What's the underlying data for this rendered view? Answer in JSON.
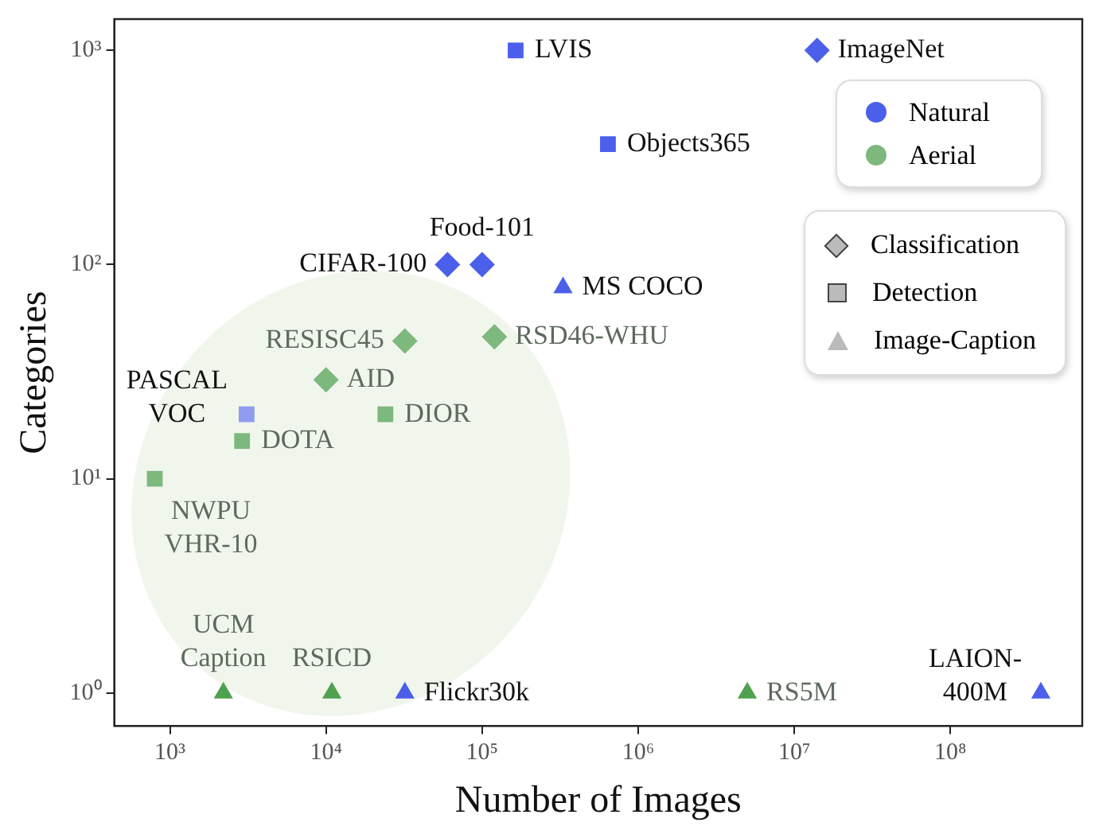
{
  "chart_data": {
    "type": "scatter",
    "xlabel": "Number of Images",
    "ylabel": "Categories",
    "log": "xy",
    "grid": false,
    "xlim": [
      440,
      700000000
    ],
    "ylim": [
      0.74,
      1400
    ],
    "xticks": [
      {
        "value": 1000,
        "label": "10³"
      },
      {
        "value": 10000,
        "label": "10⁴"
      },
      {
        "value": 100000,
        "label": "10⁵"
      },
      {
        "value": 1000000,
        "label": "10⁶"
      },
      {
        "value": 10000000,
        "label": "10⁷"
      },
      {
        "value": 100000000,
        "label": "10⁸"
      }
    ],
    "yticks": [
      {
        "value": 1,
        "label": "10⁰"
      },
      {
        "value": 10,
        "label": "10¹"
      },
      {
        "value": 100,
        "label": "10²"
      },
      {
        "value": 1000,
        "label": "10³"
      }
    ],
    "annotations": [
      "Natural",
      "Aerial",
      "Classification",
      "Detection",
      "Image-Caption"
    ],
    "series": [
      {
        "marker": "diamond",
        "color": "#4b5fea",
        "x": [
          14000000,
          60000,
          100000
        ],
        "values": [
          1000,
          100,
          100
        ],
        "value_labels": [
          "ImageNet",
          "CIFAR-100",
          "Food-101"
        ]
      },
      {
        "marker": "diamond",
        "color": "#7db87d",
        "x": [
          32000,
          120000,
          10000
        ],
        "values": [
          44,
          46,
          29
        ],
        "value_labels": [
          "RESISC45",
          "RSD46-WHU",
          "AID"
        ]
      },
      {
        "marker": "square",
        "colors": [
          "#4b5fea",
          "#4b5fea",
          "#8f9cf0"
        ],
        "x": [
          164000,
          640000,
          3100
        ],
        "values": [
          1000,
          365,
          20
        ],
        "value_labels": [
          "LVIS",
          "Objects365",
          "PASCAL\nVOC"
        ]
      },
      {
        "marker": "square",
        "color": "#7db87d",
        "x": [
          24000,
          2900,
          800
        ],
        "values": [
          20,
          15,
          10
        ],
        "value_labels": [
          "DIOR",
          "DOTA",
          "NWPU\nVHR-10"
        ]
      },
      {
        "marker": "triangle",
        "color": "#4b5fea",
        "x": [
          330000,
          32000,
          380000000
        ],
        "values": [
          78,
          1,
          1
        ],
        "value_labels": [
          "MS COCO",
          "Flickr30k",
          "LAION-\n400M"
        ]
      },
      {
        "marker": "triangle",
        "color": "#4fa04f",
        "x": [
          2200,
          10900,
          5000000
        ],
        "values": [
          1,
          1,
          1
        ],
        "value_labels": [
          "UCM\nCaption",
          "RSICD",
          "RS5M"
        ]
      }
    ]
  }
}
